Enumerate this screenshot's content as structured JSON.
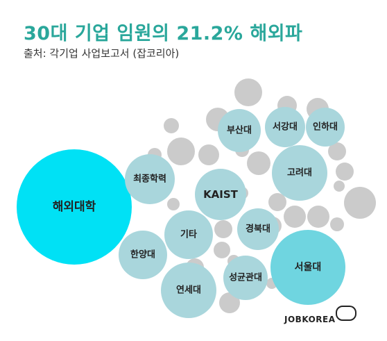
{
  "header": {
    "title": "30대 기업 임원의 21.2% 해외파",
    "source": "출처: 각기업 사업보고서 (잡코리아)"
  },
  "brand": {
    "name": "JOBKOREA"
  },
  "colors": {
    "title": "#2aa79b",
    "highlight": "#00e1f5",
    "seoul": "#6fd5e0",
    "labeled": "#a9d6dc",
    "filler": "#cbcbcb"
  },
  "chart_data": {
    "type": "bubble",
    "title": "30대 기업 임원의 21.2% 해외파",
    "labeled_bubbles": [
      {
        "name": "해외대학",
        "color_key": "highlight"
      },
      {
        "name": "서울대",
        "color_key": "seoul"
      },
      {
        "name": "고려대",
        "color_key": "labeled"
      },
      {
        "name": "연세대",
        "color_key": "labeled"
      },
      {
        "name": "KAIST",
        "color_key": "labeled"
      },
      {
        "name": "최종학력",
        "color_key": "labeled"
      },
      {
        "name": "기타",
        "color_key": "labeled"
      },
      {
        "name": "한양대",
        "color_key": "labeled"
      },
      {
        "name": "성균관대",
        "color_key": "labeled"
      },
      {
        "name": "경북대",
        "color_key": "labeled"
      },
      {
        "name": "부산대",
        "color_key": "labeled"
      },
      {
        "name": "서강대",
        "color_key": "labeled"
      },
      {
        "name": "인하대",
        "color_key": "labeled"
      }
    ],
    "unlabeled_bubble_count": 29
  }
}
